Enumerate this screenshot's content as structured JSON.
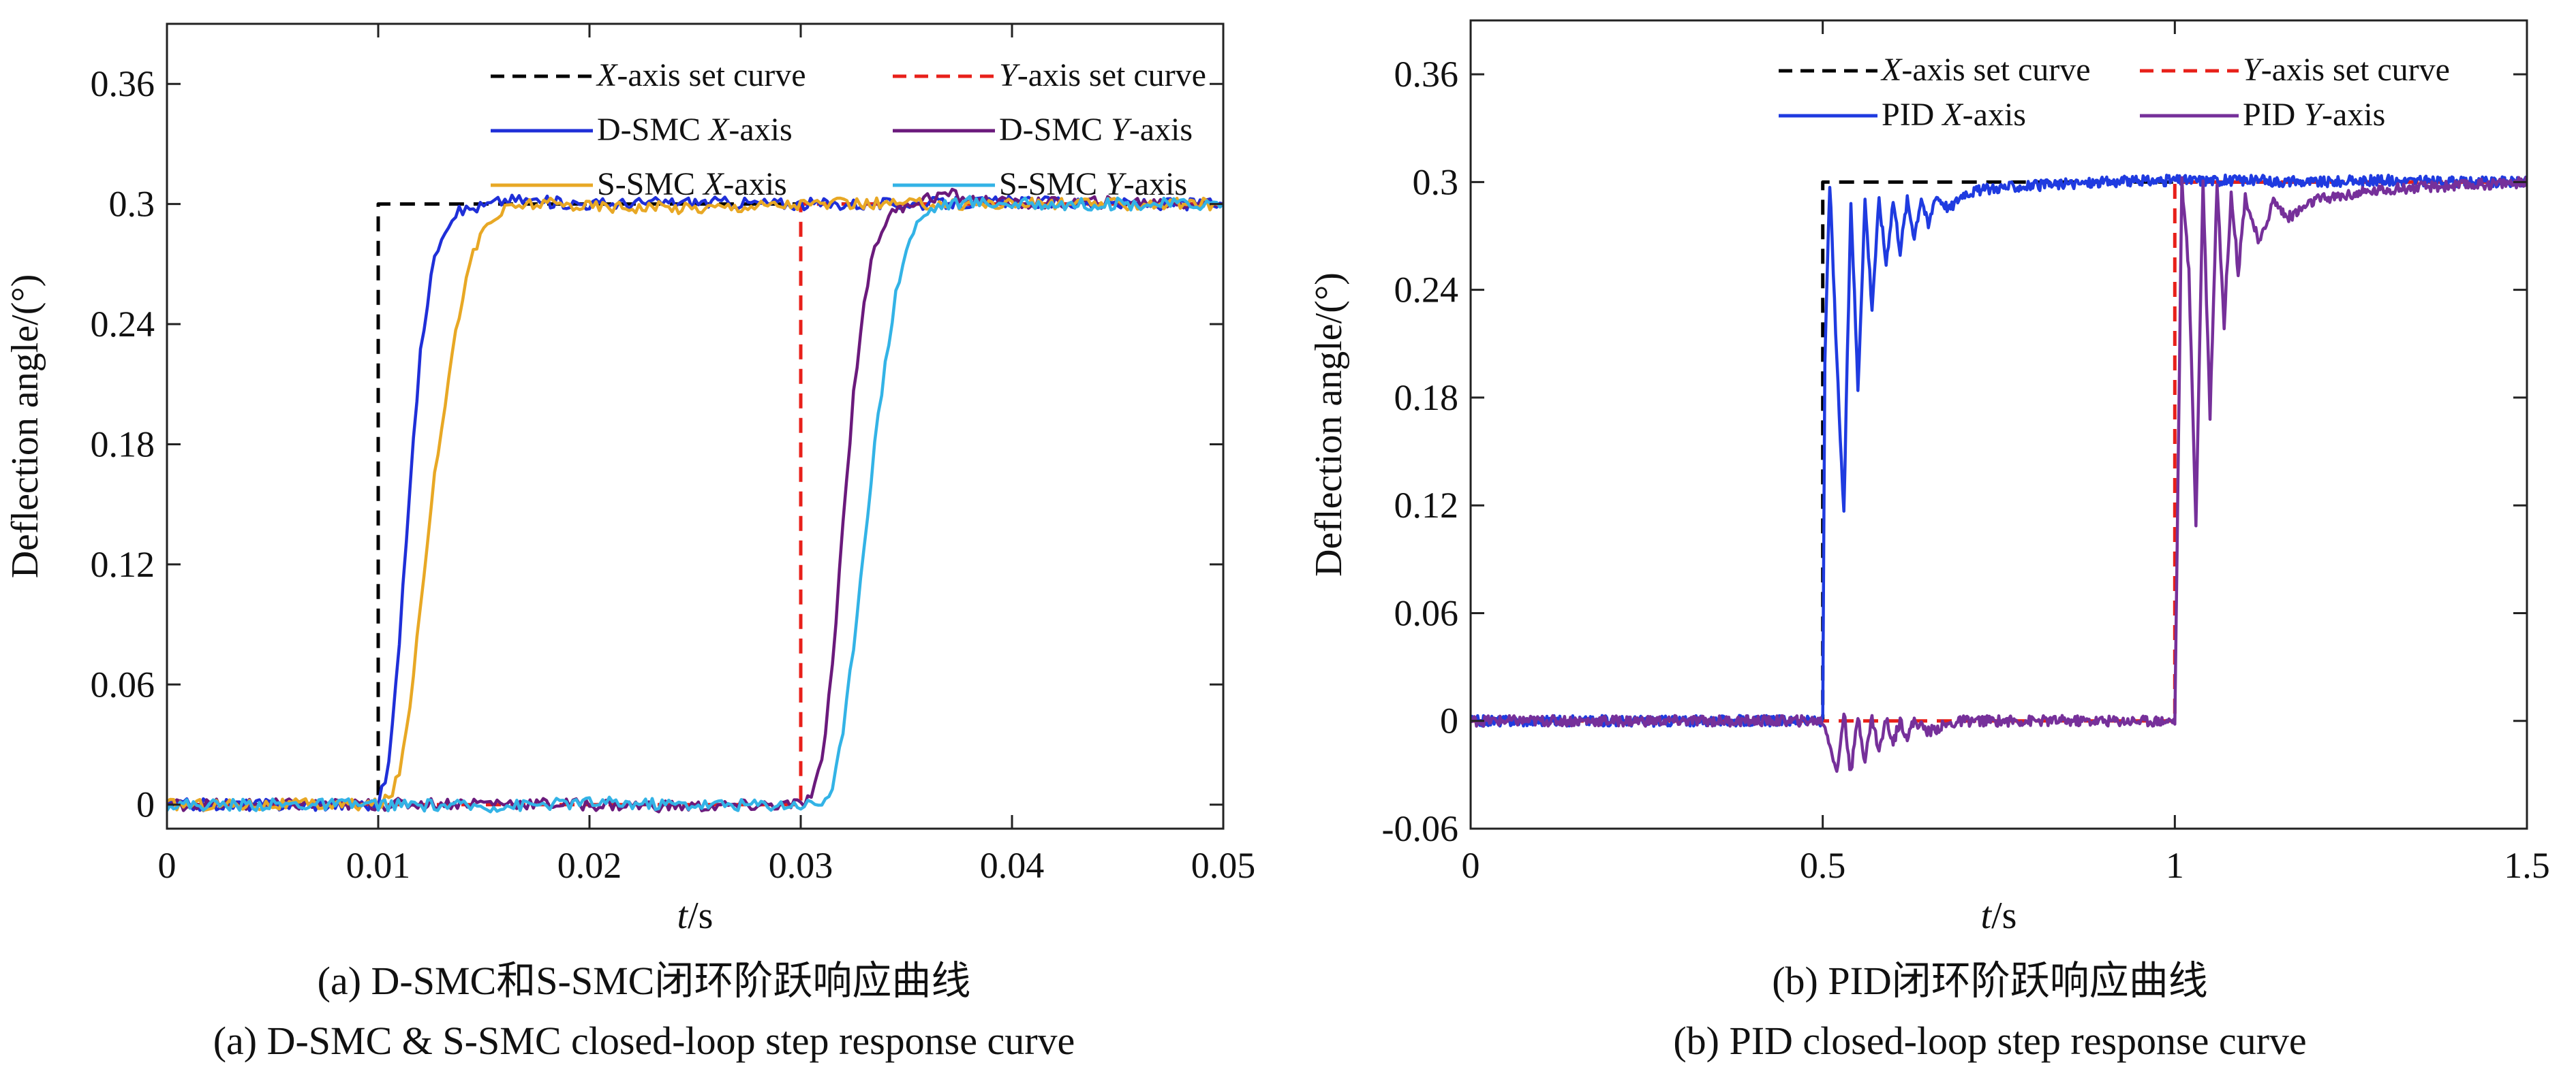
{
  "figure": {
    "colors": {
      "black_dash": "#000000",
      "red_dash": "#e8201a",
      "dsmc_x": "#1f2fd8",
      "dsmc_y": "#6b1a7c",
      "ssmc_x": "#e8a825",
      "ssmc_y": "#33b3e6",
      "pid_x": "#1f3be0",
      "pid_y": "#76309a"
    }
  },
  "chart_data": [
    {
      "type": "line",
      "panel": "a",
      "xlabel_italic": "t",
      "xlabel_rest": "/s",
      "ylabel": "Deflection angle/(°)",
      "xlim": [
        0,
        0.05
      ],
      "ylim": [
        -0.012,
        0.39
      ],
      "xticks": [
        0,
        0.01,
        0.02,
        0.03,
        0.04,
        0.05
      ],
      "xtick_labels": [
        "0",
        "0.01",
        "0.02",
        "0.03",
        "0.04",
        "0.05"
      ],
      "yticks": [
        0,
        0.06,
        0.12,
        0.18,
        0.24,
        0.3,
        0.36
      ],
      "ytick_labels": [
        "0",
        "0.06",
        "0.12",
        "0.18",
        "0.24",
        "0.3",
        "0.36"
      ],
      "caption_cn": "(a) D-SMC和S-SMC闭环阶跃响应曲线",
      "caption_en": "(a) D-SMC & S-SMC closed-loop step response curve",
      "legend_position": "top-right",
      "series": [
        {
          "key": "xset",
          "prefix": "",
          "italic": "X",
          "suffix": "-axis set curve",
          "color_key": "black_dash",
          "style": "dashed",
          "x": [
            0,
            0.01,
            0.01,
            0.05
          ],
          "y": [
            0,
            0,
            0.3,
            0.3
          ]
        },
        {
          "key": "yset",
          "prefix": "",
          "italic": "Y",
          "suffix": "-axis set curve",
          "color_key": "red_dash",
          "style": "dashed",
          "x": [
            0,
            0.03,
            0.03,
            0.05
          ],
          "y": [
            0,
            0,
            0.3,
            0.3
          ]
        },
        {
          "key": "dsmcx",
          "prefix": "D-SMC ",
          "italic": "X",
          "suffix": "-axis",
          "color_key": "dsmc_x",
          "style": "solid",
          "x": [
            0,
            0.01,
            0.0105,
            0.011,
            0.0115,
            0.012,
            0.0125,
            0.013,
            0.0135,
            0.014,
            0.015,
            0.016,
            0.017,
            0.018,
            0.02,
            0.025,
            0.03,
            0.035,
            0.04,
            0.045,
            0.05
          ],
          "y": [
            0,
            0,
            0.02,
            0.08,
            0.16,
            0.225,
            0.265,
            0.285,
            0.294,
            0.297,
            0.299,
            0.302,
            0.302,
            0.301,
            0.3,
            0.301,
            0.3,
            0.3,
            0.301,
            0.3,
            0.3
          ]
        },
        {
          "key": "dsmcy",
          "prefix": "D-SMC ",
          "italic": "Y",
          "suffix": "-axis",
          "color_key": "dsmc_y",
          "style": "solid",
          "x": [
            0,
            0.01,
            0.015,
            0.02,
            0.025,
            0.03,
            0.0305,
            0.031,
            0.0315,
            0.032,
            0.0325,
            0.033,
            0.0335,
            0.034,
            0.0345,
            0.035,
            0.036,
            0.037,
            0.038,
            0.04,
            0.045,
            0.05
          ],
          "y": [
            0,
            0,
            0.001,
            0,
            -0.001,
            0,
            0.004,
            0.02,
            0.07,
            0.14,
            0.205,
            0.252,
            0.278,
            0.291,
            0.297,
            0.3,
            0.303,
            0.305,
            0.302,
            0.3,
            0.301,
            0.3
          ]
        },
        {
          "key": "ssmcx",
          "prefix": "S-SMC ",
          "italic": "X",
          "suffix": "-axis",
          "color_key": "ssmc_x",
          "style": "solid",
          "x": [
            0,
            0.01,
            0.0105,
            0.011,
            0.0115,
            0.012,
            0.0125,
            0.013,
            0.0135,
            0.014,
            0.0145,
            0.015,
            0.016,
            0.017,
            0.018,
            0.02,
            0.025,
            0.03,
            0.035,
            0.04,
            0.045,
            0.05
          ],
          "y": [
            0,
            0,
            0.003,
            0.015,
            0.05,
            0.1,
            0.15,
            0.19,
            0.225,
            0.255,
            0.275,
            0.288,
            0.297,
            0.3,
            0.3,
            0.299,
            0.298,
            0.3,
            0.3,
            0.3,
            0.3,
            0.3
          ]
        },
        {
          "key": "ssmcy",
          "prefix": "S-SMC ",
          "italic": "Y",
          "suffix": "-axis",
          "color_key": "ssmc_y",
          "style": "solid",
          "x": [
            0,
            0.01,
            0.015,
            0.02,
            0.025,
            0.03,
            0.031,
            0.0315,
            0.032,
            0.0325,
            0.033,
            0.0335,
            0.034,
            0.0345,
            0.035,
            0.0355,
            0.036,
            0.0365,
            0.037,
            0.038,
            0.04,
            0.045,
            0.05
          ],
          "y": [
            0,
            0,
            -0.001,
            0.001,
            0,
            0,
            0.001,
            0.008,
            0.035,
            0.08,
            0.13,
            0.18,
            0.22,
            0.255,
            0.278,
            0.29,
            0.296,
            0.299,
            0.3,
            0.301,
            0.3,
            0.3,
            0.3
          ]
        }
      ]
    },
    {
      "type": "line",
      "panel": "b",
      "xlabel_italic": "t",
      "xlabel_rest": "/s",
      "ylabel": "Deflection angle/(°)",
      "xlim": [
        0,
        1.5
      ],
      "ylim": [
        -0.06,
        0.39
      ],
      "xticks": [
        0,
        0.5,
        1,
        1.5
      ],
      "xtick_labels": [
        "0",
        "0.5",
        "1",
        "1.5"
      ],
      "yticks": [
        -0.06,
        0,
        0.06,
        0.12,
        0.18,
        0.24,
        0.3,
        0.36
      ],
      "ytick_labels": [
        "-0.06",
        "0",
        "0.06",
        "0.12",
        "0.18",
        "0.24",
        "0.3",
        "0.36"
      ],
      "caption_cn": "(b) PID闭环阶跃响应曲线",
      "caption_en": "(b) PID closed-loop step response curve",
      "legend_position": "top-right",
      "series": [
        {
          "key": "xset",
          "prefix": "",
          "italic": "X",
          "suffix": "-axis set curve",
          "color_key": "black_dash",
          "style": "dashed",
          "x": [
            0,
            0.5,
            0.5,
            1.5
          ],
          "y": [
            0,
            0,
            0.3,
            0.3
          ]
        },
        {
          "key": "yset",
          "prefix": "",
          "italic": "Y",
          "suffix": "-axis set curve",
          "color_key": "red_dash",
          "style": "dashed",
          "x": [
            0,
            1,
            1,
            1.5
          ],
          "y": [
            0,
            0,
            0.3,
            0.3
          ]
        },
        {
          "key": "pidx",
          "prefix": "PID ",
          "italic": "X",
          "suffix": "-axis",
          "color_key": "pid_x",
          "style": "solid",
          "x": [
            0,
            0.5,
            0.503,
            0.51,
            0.52,
            0.53,
            0.54,
            0.55,
            0.56,
            0.57,
            0.58,
            0.59,
            0.6,
            0.61,
            0.62,
            0.63,
            0.64,
            0.65,
            0.66,
            0.68,
            0.7,
            0.75,
            0.8,
            0.9,
            1.0,
            1.1,
            1.2,
            1.3,
            1.4,
            1.5
          ],
          "y": [
            0,
            0,
            0.2,
            0.3,
            0.2,
            0.115,
            0.29,
            0.185,
            0.29,
            0.23,
            0.29,
            0.255,
            0.29,
            0.262,
            0.29,
            0.27,
            0.292,
            0.275,
            0.293,
            0.285,
            0.294,
            0.297,
            0.298,
            0.3,
            0.301,
            0.301,
            0.3,
            0.301,
            0.3,
            0.3
          ]
        },
        {
          "key": "pidy",
          "prefix": "PID ",
          "italic": "Y",
          "suffix": "-axis",
          "color_key": "pid_y",
          "style": "solid",
          "x": [
            0,
            0.5,
            0.51,
            0.52,
            0.53,
            0.54,
            0.55,
            0.56,
            0.57,
            0.58,
            0.59,
            0.6,
            0.61,
            0.62,
            0.63,
            0.65,
            0.67,
            0.7,
            0.8,
            0.9,
            1.0,
            1.005,
            1.01,
            1.02,
            1.03,
            1.04,
            1.05,
            1.06,
            1.07,
            1.08,
            1.09,
            1.1,
            1.12,
            1.14,
            1.16,
            1.2,
            1.3,
            1.4,
            1.5
          ],
          "y": [
            0,
            0,
            -0.012,
            -0.03,
            0.005,
            -0.03,
            0.003,
            -0.022,
            0.002,
            -0.017,
            0.001,
            -0.012,
            0.0,
            -0.009,
            0.0,
            -0.006,
            -0.003,
            0.0,
            0.0,
            0.0,
            0.0,
            0.15,
            0.3,
            0.25,
            0.11,
            0.3,
            0.17,
            0.3,
            0.22,
            0.295,
            0.25,
            0.292,
            0.265,
            0.29,
            0.28,
            0.29,
            0.296,
            0.298,
            0.3
          ]
        }
      ]
    }
  ]
}
